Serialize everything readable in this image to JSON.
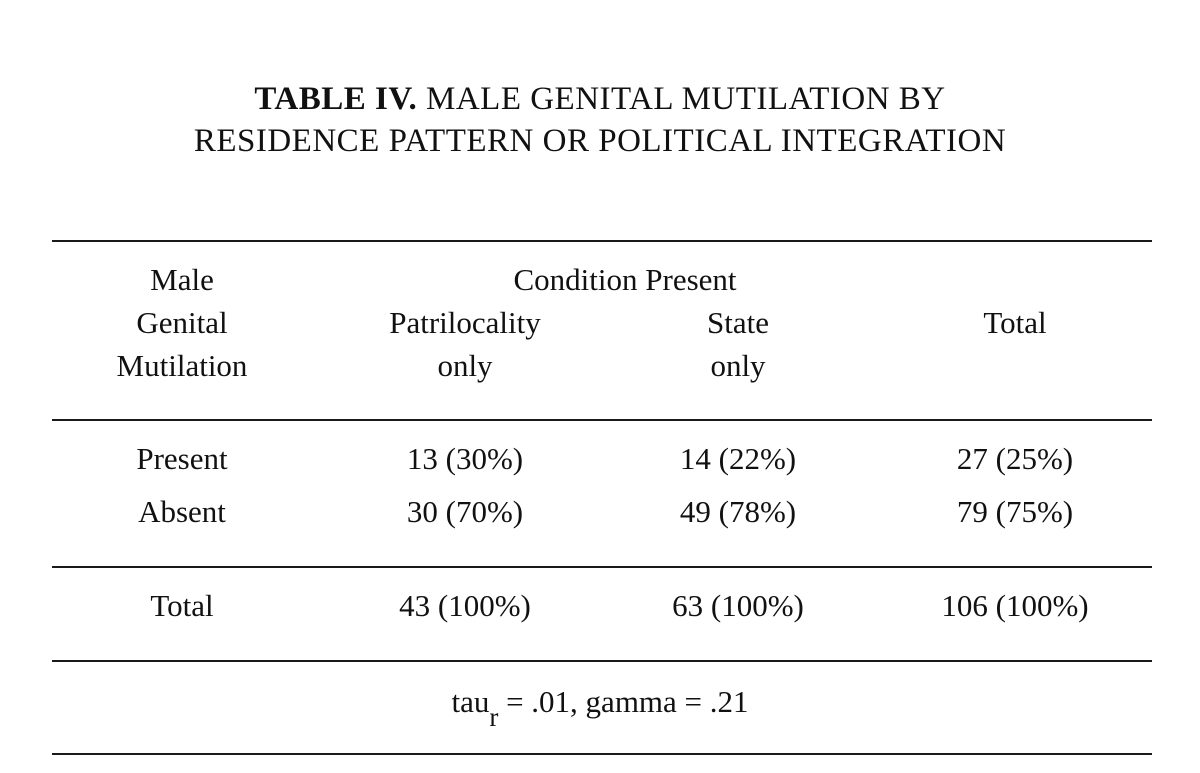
{
  "title": {
    "label": "TABLE IV.",
    "line1": "MALE GENITAL MUTILATION BY",
    "line2": "RESIDENCE PATTERN OR POLITICAL INTEGRATION"
  },
  "header": {
    "row_label": [
      "Male",
      "Genital",
      "Mutilation"
    ],
    "group_label": "Condition Present",
    "col1": [
      "Patrilocality",
      "only"
    ],
    "col2": [
      "State",
      "only"
    ],
    "col3": "Total"
  },
  "rows": [
    {
      "label": "Present",
      "c1": "13 (30%)",
      "c2": "14 (22%)",
      "c3": "27 (25%)"
    },
    {
      "label": "Absent",
      "c1": "30 (70%)",
      "c2": "49 (78%)",
      "c3": "79 (75%)"
    }
  ],
  "total_row": {
    "label": "Total",
    "c1": "43 (100%)",
    "c2": "63 (100%)",
    "c3": "106 (100%)"
  },
  "stats": {
    "tau_base": "tau",
    "tau_sub": "r",
    "rest": " = .01, gamma = .21"
  }
}
